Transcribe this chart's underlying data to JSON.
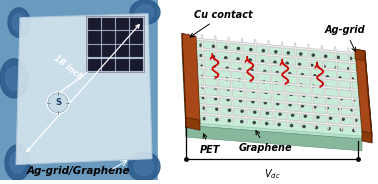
{
  "annotation_18inch": "18 inch",
  "label_left": "Ag-grid/Graphene",
  "label_cu": "Cu contact",
  "label_ag": "Ag-grid",
  "label_pet": "PET",
  "label_graphene": "Graphene",
  "label_vdc": "V",
  "left_bg": "#6a9bbf",
  "left_hand_dark": "#2a5a8a",
  "left_hand_mid": "#4a7aaa",
  "sheet_face": "#d8e8f0",
  "sheet_edge": "#b0c8dc",
  "grid_cell_color": "#1a1a2e",
  "grid_gap": "#555577",
  "compass_bg": "#c8dce8",
  "pet_top": "#b8e0cc",
  "pet_side_front": "#88b89c",
  "pet_side_right": "#98c8b0",
  "graphene_top": "#c8ecd8",
  "cu_face": "#8b3a0a",
  "cu_top": "#a84818",
  "cu_edge": "#5a2000",
  "ag_wire": "#c8c8c8",
  "ag_wire_bright": "#f0f0f0",
  "dot_color": "#303838",
  "red_arrow": "#cc0000",
  "font_size": 7,
  "font_size_sm": 6
}
